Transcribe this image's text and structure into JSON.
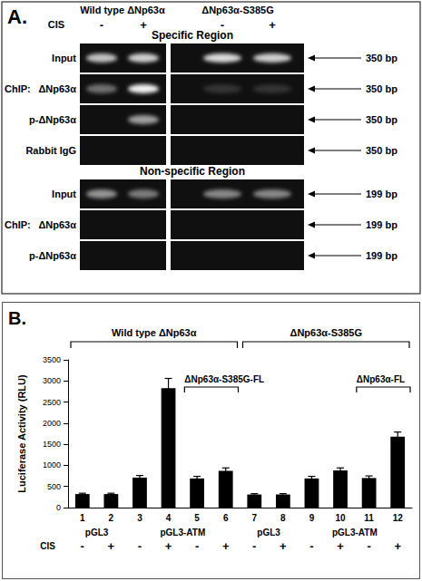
{
  "panel_a": {
    "label": "A.",
    "groups": [
      "Wild type ΔNp63α",
      "ΔNp63α-S385G"
    ],
    "treatment_label": "CIS",
    "lanes": [
      "-",
      "+",
      "-",
      "+"
    ],
    "chip_label": "ChIP:",
    "sections": [
      {
        "title": "Specific Region",
        "size": "350 bp",
        "rows": [
          {
            "label": "Input",
            "chip": false,
            "bands": [
              0.75,
              0.8,
              0.85,
              0.8
            ]
          },
          {
            "label": "ΔNp63α",
            "chip": true,
            "bands": [
              0.4,
              0.95,
              0.15,
              0.15
            ]
          },
          {
            "label": "p-ΔNp63α",
            "chip": true,
            "bands": [
              0,
              0.6,
              0,
              0
            ]
          },
          {
            "label": "Rabbit IgG",
            "chip": true,
            "bands": [
              0,
              0,
              0,
              0
            ]
          }
        ]
      },
      {
        "title": "Non-specific Region",
        "size": "199 bp",
        "rows": [
          {
            "label": "Input",
            "chip": false,
            "bands": [
              0.55,
              0.45,
              0.5,
              0.5
            ]
          },
          {
            "label": "ΔNp63α",
            "chip": true,
            "bands": [
              0,
              0,
              0,
              0
            ]
          },
          {
            "label": "p-ΔNp63α",
            "chip": true,
            "bands": [
              0,
              0,
              0,
              0
            ]
          }
        ]
      }
    ]
  },
  "chart_data": {
    "type": "bar",
    "panel_label": "B.",
    "y_label": "Luciferase Activity (RLU)",
    "categories": [
      "1",
      "2",
      "3",
      "4",
      "5",
      "6",
      "7",
      "8",
      "9",
      "10",
      "11",
      "12"
    ],
    "values": [
      320,
      320,
      710,
      2830,
      690,
      870,
      310,
      310,
      690,
      880,
      700,
      1680
    ],
    "errors": [
      20,
      20,
      50,
      230,
      50,
      70,
      20,
      20,
      50,
      60,
      50,
      110
    ],
    "color": "#000000",
    "ylim": [
      0,
      3500
    ],
    "yticks": [
      0,
      500,
      1000,
      1500,
      2000,
      2500,
      3000,
      3500
    ],
    "grid": false,
    "treatment_label": "CIS",
    "treatment": [
      "-",
      "+",
      "-",
      "+",
      "-",
      "+",
      "-",
      "+",
      "-",
      "+",
      "-",
      "+"
    ],
    "groups": [
      {
        "label": "Wild type ΔNp63α",
        "categories": [
          "1",
          "6"
        ]
      },
      {
        "label": "ΔNp63α-S385G",
        "categories": [
          "7",
          "12"
        ]
      }
    ],
    "plasmids": [
      {
        "label": "pGL3",
        "categories": [
          "1",
          "2"
        ]
      },
      {
        "label": "pGL3-ATM",
        "categories": [
          "3",
          "6"
        ]
      },
      {
        "label": "pGL3",
        "categories": [
          "7",
          "8"
        ]
      },
      {
        "label": "pGL3-ATM",
        "categories": [
          "9",
          "12"
        ]
      }
    ],
    "constructs": [
      {
        "label": "ΔNp63α-S385G-FL",
        "categories": [
          "5",
          "6"
        ]
      },
      {
        "label": "ΔNp63α-FL",
        "categories": [
          "11",
          "12"
        ]
      }
    ]
  }
}
